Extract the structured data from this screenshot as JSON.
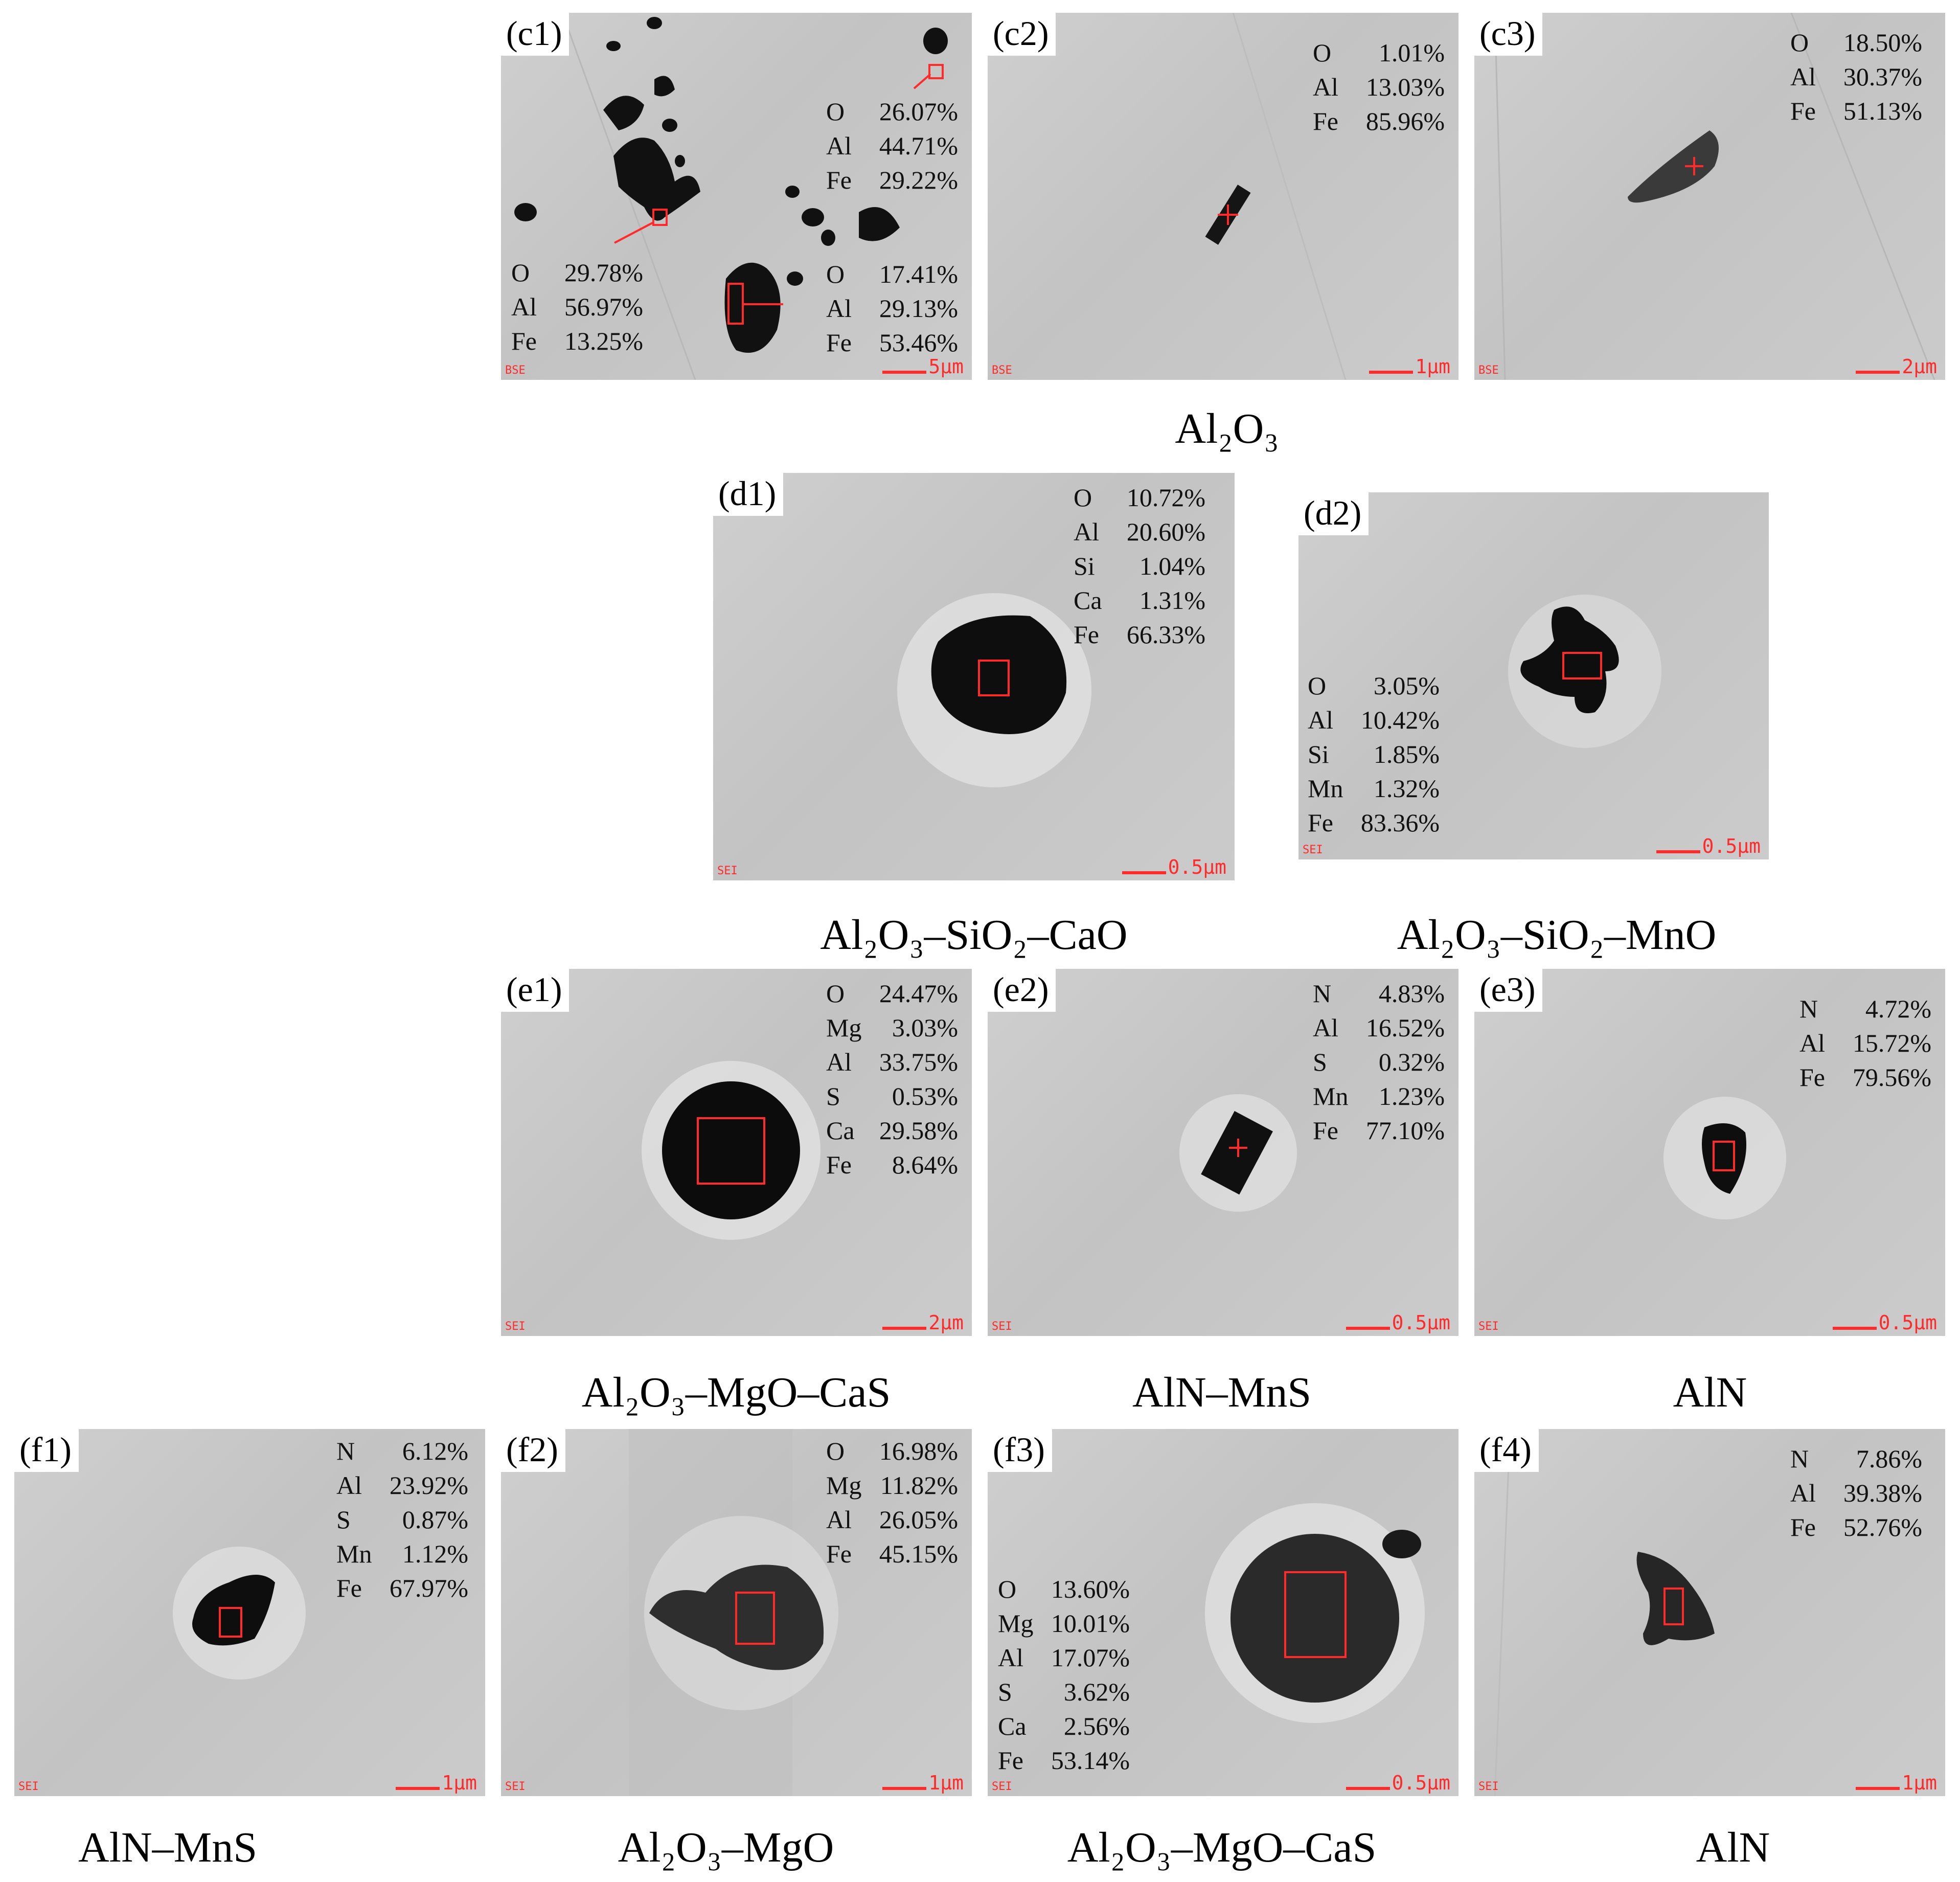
{
  "marker_color": "#ff2a2a",
  "panels": {
    "c1": {
      "label": "(c1)",
      "mode": "BSE",
      "scale": "5μm",
      "groups": [
        {
          "rows": [
            [
              "O",
              "26.07%"
            ],
            [
              "Al",
              "44.71%"
            ],
            [
              "Fe",
              "29.22%"
            ]
          ]
        },
        {
          "rows": [
            [
              "O",
              "29.78%"
            ],
            [
              "Al",
              "56.97%"
            ],
            [
              "Fe",
              "13.25%"
            ]
          ]
        },
        {
          "rows": [
            [
              "O",
              "17.41%"
            ],
            [
              "Al",
              "29.13%"
            ],
            [
              "Fe",
              "53.46%"
            ]
          ]
        }
      ]
    },
    "c2": {
      "label": "(c2)",
      "mode": "BSE",
      "scale": "1μm",
      "groups": [
        {
          "rows": [
            [
              "O",
              "1.01%"
            ],
            [
              "Al",
              "13.03%"
            ],
            [
              "Fe",
              "85.96%"
            ]
          ]
        }
      ]
    },
    "c3": {
      "label": "(c3)",
      "mode": "BSE",
      "scale": "2μm",
      "groups": [
        {
          "rows": [
            [
              "O",
              "18.50%"
            ],
            [
              "Al",
              "30.37%"
            ],
            [
              "Fe",
              "51.13%"
            ]
          ]
        }
      ]
    },
    "d1": {
      "label": "(d1)",
      "mode": "SEI",
      "scale": "0.5μm",
      "groups": [
        {
          "rows": [
            [
              "O",
              "10.72%"
            ],
            [
              "Al",
              "20.60%"
            ],
            [
              "Si",
              "1.04%"
            ],
            [
              "Ca",
              "1.31%"
            ],
            [
              "Fe",
              "66.33%"
            ]
          ]
        }
      ]
    },
    "d2": {
      "label": "(d2)",
      "mode": "SEI",
      "scale": "0.5μm",
      "groups": [
        {
          "rows": [
            [
              "O",
              "3.05%"
            ],
            [
              "Al",
              "10.42%"
            ],
            [
              "Si",
              "1.85%"
            ],
            [
              "Mn",
              "1.32%"
            ],
            [
              "Fe",
              "83.36%"
            ]
          ]
        }
      ]
    },
    "e1": {
      "label": "(e1)",
      "mode": "SEI",
      "scale": "2μm",
      "groups": [
        {
          "rows": [
            [
              "O",
              "24.47%"
            ],
            [
              "Mg",
              "3.03%"
            ],
            [
              "Al",
              "33.75%"
            ],
            [
              "S",
              "0.53%"
            ],
            [
              "Ca",
              "29.58%"
            ],
            [
              "Fe",
              "8.64%"
            ]
          ]
        }
      ]
    },
    "e2": {
      "label": "(e2)",
      "mode": "SEI",
      "scale": "0.5μm",
      "groups": [
        {
          "rows": [
            [
              "N",
              "4.83%"
            ],
            [
              "Al",
              "16.52%"
            ],
            [
              "S",
              "0.32%"
            ],
            [
              "Mn",
              "1.23%"
            ],
            [
              "Fe",
              "77.10%"
            ]
          ]
        }
      ]
    },
    "e3": {
      "label": "(e3)",
      "mode": "SEI",
      "scale": "0.5μm",
      "groups": [
        {
          "rows": [
            [
              "N",
              "4.72%"
            ],
            [
              "Al",
              "15.72%"
            ],
            [
              "Fe",
              "79.56%"
            ]
          ]
        }
      ]
    },
    "f1": {
      "label": "(f1)",
      "mode": "SEI",
      "scale": "1μm",
      "groups": [
        {
          "rows": [
            [
              "N",
              "6.12%"
            ],
            [
              "Al",
              "23.92%"
            ],
            [
              "S",
              "0.87%"
            ],
            [
              "Mn",
              "1.12%"
            ],
            [
              "Fe",
              "67.97%"
            ]
          ]
        }
      ]
    },
    "f2": {
      "label": "(f2)",
      "mode": "SEI",
      "scale": "1μm",
      "groups": [
        {
          "rows": [
            [
              "O",
              "16.98%"
            ],
            [
              "Mg",
              "11.82%"
            ],
            [
              "Al",
              "26.05%"
            ],
            [
              "Fe",
              "45.15%"
            ]
          ]
        }
      ]
    },
    "f3": {
      "label": "(f3)",
      "mode": "SEI",
      "scale": "0.5μm",
      "groups": [
        {
          "rows": [
            [
              "O",
              "13.60%"
            ],
            [
              "Mg",
              "10.01%"
            ],
            [
              "Al",
              "17.07%"
            ],
            [
              "S",
              "3.62%"
            ],
            [
              "Ca",
              "2.56%"
            ],
            [
              "Fe",
              "53.14%"
            ]
          ]
        }
      ]
    },
    "f4": {
      "label": "(f4)",
      "mode": "SEI",
      "scale": "1μm",
      "groups": [
        {
          "rows": [
            [
              "N",
              "7.86%"
            ],
            [
              "Al",
              "39.38%"
            ],
            [
              "Fe",
              "52.76%"
            ]
          ]
        }
      ]
    }
  },
  "captions": {
    "c": "Al₂O₃",
    "d1": "Al₂O₃–SiO₂–CaO",
    "d2": "Al₂O₃–SiO₂–MnO",
    "e1": "Al₂O₃–MgO–CaS",
    "e2": "AlN–MnS",
    "e3": "AlN",
    "f1": "AlN–MnS",
    "f2": "Al₂O₃–MgO",
    "f3": "Al₂O₃–MgO–CaS",
    "f4": "AlN"
  }
}
